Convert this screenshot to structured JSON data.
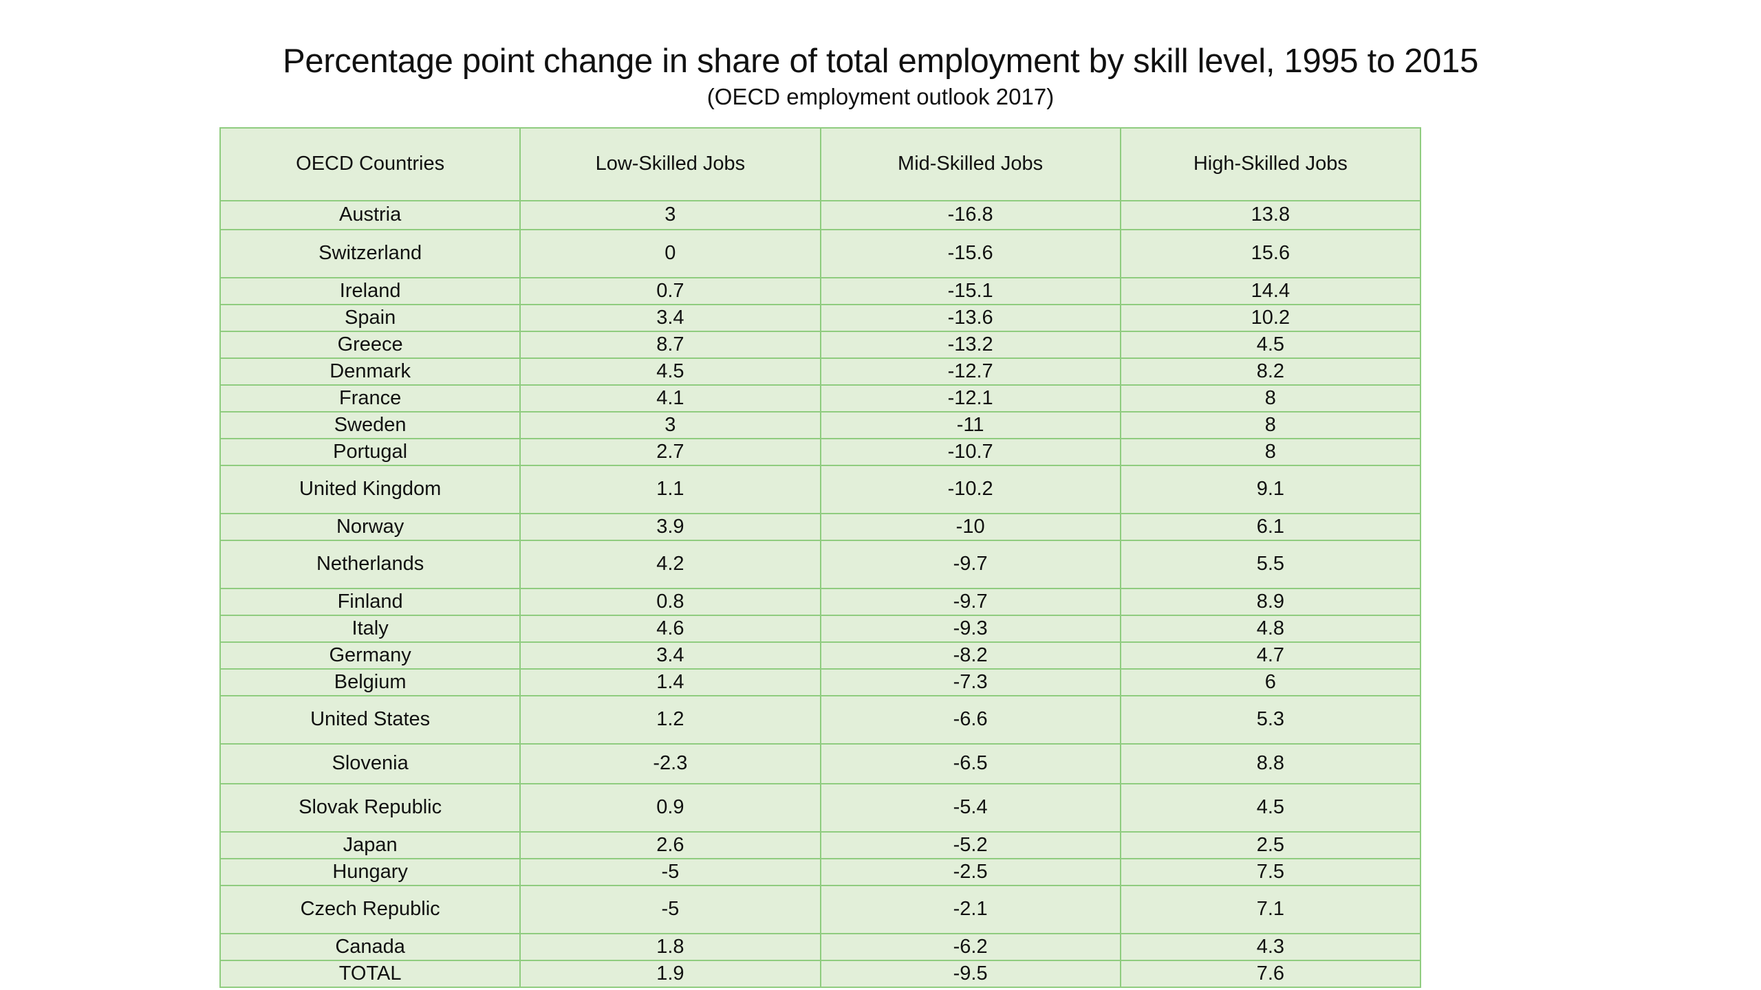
{
  "title": "Percentage point change in share of total employment by skill level, 1995 to 2015",
  "subtitle": "(OECD employment outlook 2017)",
  "columns": [
    "OECD Countries",
    "Low-Skilled Jobs",
    "Mid-Skilled Jobs",
    "High-Skilled Jobs"
  ],
  "rows": [
    [
      "Austria",
      "3",
      "-16.8",
      "13.8"
    ],
    [
      "Switzerland",
      "0",
      "-15.6",
      "15.6"
    ],
    [
      "Ireland",
      "0.7",
      "-15.1",
      "14.4"
    ],
    [
      "Spain",
      "3.4",
      "-13.6",
      "10.2"
    ],
    [
      "Greece",
      "8.7",
      "-13.2",
      "4.5"
    ],
    [
      "Denmark",
      "4.5",
      "-12.7",
      "8.2"
    ],
    [
      "France",
      "4.1",
      "-12.1",
      "8"
    ],
    [
      "Sweden",
      "3",
      "-11",
      "8"
    ],
    [
      "Portugal",
      "2.7",
      "-10.7",
      "8"
    ],
    [
      "United Kingdom",
      "1.1",
      "-10.2",
      "9.1"
    ],
    [
      "Norway",
      "3.9",
      "-10",
      "6.1"
    ],
    [
      "Netherlands",
      "4.2",
      "-9.7",
      "5.5"
    ],
    [
      "Finland",
      "0.8",
      "-9.7",
      "8.9"
    ],
    [
      "Italy",
      "4.6",
      "-9.3",
      "4.8"
    ],
    [
      "Germany",
      "3.4",
      "-8.2",
      "4.7"
    ],
    [
      "Belgium",
      "1.4",
      "-7.3",
      "6"
    ],
    [
      "United States",
      "1.2",
      "-6.6",
      "5.3"
    ],
    [
      "Slovenia",
      "-2.3",
      "-6.5",
      "8.8"
    ],
    [
      "Slovak Republic",
      "0.9",
      "-5.4",
      "4.5"
    ],
    [
      "Japan",
      "2.6",
      "-5.2",
      "2.5"
    ],
    [
      "Hungary",
      "-5",
      "-2.5",
      "7.5"
    ],
    [
      "Czech Republic",
      "-5",
      "-2.1",
      "7.1"
    ],
    [
      "Canada",
      "1.8",
      "-6.2",
      "4.3"
    ],
    [
      "TOTAL",
      "1.9",
      "-9.5",
      "7.6"
    ]
  ],
  "colors": {
    "cell_fill": "#e2efd9",
    "border": "#8fcc7f",
    "text": "#111111"
  }
}
